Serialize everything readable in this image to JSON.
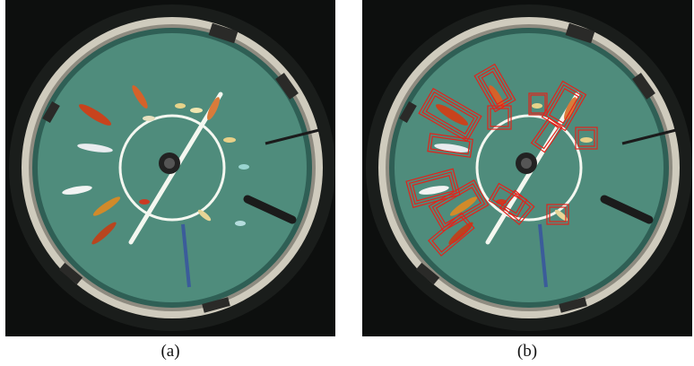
{
  "panels": [
    {
      "id": "a",
      "caption": "(a)"
    },
    {
      "id": "b",
      "caption": "(b)"
    }
  ],
  "colors": {
    "background": "#0d0f0e",
    "arena_rim": "#d9d6c8",
    "water": "#4f8c7c",
    "water_edge": "#2f5f55",
    "line": "#f4f7f0",
    "detection_box": "#e0241c"
  },
  "icons": {
    "camera": "camera-icon"
  }
}
